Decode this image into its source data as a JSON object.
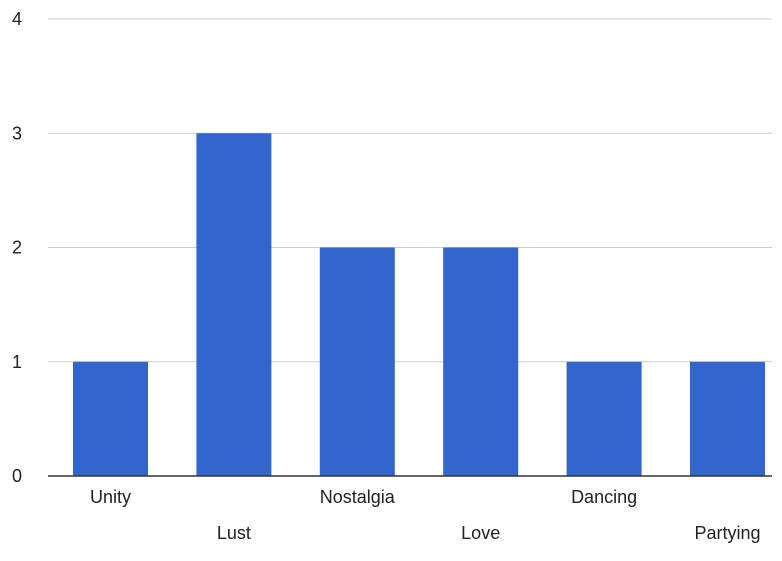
{
  "chart_data": {
    "type": "bar",
    "title": "",
    "xlabel": "",
    "ylabel": "",
    "categories": [
      "Unity",
      "Lust",
      "Nostalgia",
      "Love",
      "Dancing",
      "Partying"
    ],
    "values": [
      1,
      3,
      2,
      2,
      1,
      1
    ],
    "ylim": [
      0,
      4
    ],
    "yticks": [
      "0",
      "1",
      "2",
      "3",
      "4"
    ],
    "grid": true,
    "legend": "none",
    "colors": {
      "bar": "#3366cc",
      "gridline": "#cccccc",
      "baseline": "#333333",
      "text": "#222222"
    }
  }
}
